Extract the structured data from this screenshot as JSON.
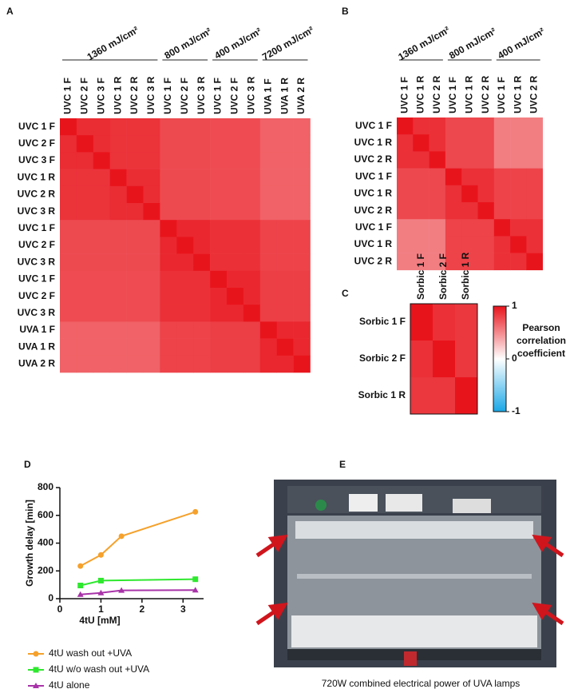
{
  "chart_data": [
    {
      "type": "heatmap",
      "label": "A",
      "rows": [
        "UVC 1 F",
        "UVC 2 F",
        "UVC 3 F",
        "UVC 1 R",
        "UVC 2 R",
        "UVC 3 R",
        "UVC 1 F",
        "UVC 2 F",
        "UVC 3 R",
        "UVC 1 F",
        "UVC 2 F",
        "UVC 3 R",
        "UVA 1 F",
        "UVA 1 R",
        "UVA 2 R"
      ],
      "column_groups": [
        {
          "label": "1360 mJ/cm²",
          "columns": [
            "UVC 1 F",
            "UVC 2 F",
            "UVC 3 F",
            "UVC 1 R",
            "UVC 2 R",
            "UVC 3 R"
          ]
        },
        {
          "label": "800 mJ/cm²",
          "columns": [
            "UVC 1 F",
            "UVC 2 F",
            "UVC 3 R"
          ]
        },
        {
          "label": "400 mJ/cm²",
          "columns": [
            "UVC 1 F",
            "UVC 2 F",
            "UVC 3 R"
          ]
        },
        {
          "label": "7200 mJ/cm²",
          "columns": [
            "UVA 1 F",
            "UVA 1 R",
            "UVA 2 R"
          ]
        }
      ],
      "values": [
        [
          1,
          0.9,
          0.9,
          0.87,
          0.87,
          0.87,
          0.77,
          0.77,
          0.77,
          0.76,
          0.76,
          0.76,
          0.67,
          0.67,
          0.67
        ],
        [
          0.9,
          1,
          0.9,
          0.87,
          0.87,
          0.87,
          0.77,
          0.77,
          0.77,
          0.76,
          0.76,
          0.76,
          0.67,
          0.67,
          0.67
        ],
        [
          0.9,
          0.9,
          1,
          0.87,
          0.87,
          0.87,
          0.77,
          0.77,
          0.77,
          0.76,
          0.76,
          0.76,
          0.67,
          0.67,
          0.67
        ],
        [
          0.87,
          0.87,
          0.87,
          1,
          0.9,
          0.9,
          0.77,
          0.77,
          0.77,
          0.76,
          0.76,
          0.76,
          0.67,
          0.67,
          0.67
        ],
        [
          0.87,
          0.87,
          0.87,
          0.9,
          1,
          0.9,
          0.77,
          0.77,
          0.77,
          0.76,
          0.76,
          0.76,
          0.67,
          0.67,
          0.67
        ],
        [
          0.87,
          0.87,
          0.87,
          0.9,
          0.9,
          1,
          0.77,
          0.77,
          0.77,
          0.76,
          0.76,
          0.76,
          0.67,
          0.67,
          0.67
        ],
        [
          0.77,
          0.77,
          0.77,
          0.77,
          0.77,
          0.77,
          1,
          0.92,
          0.92,
          0.88,
          0.88,
          0.88,
          0.8,
          0.8,
          0.8
        ],
        [
          0.77,
          0.77,
          0.77,
          0.77,
          0.77,
          0.77,
          0.92,
          1,
          0.92,
          0.88,
          0.88,
          0.88,
          0.8,
          0.8,
          0.8
        ],
        [
          0.77,
          0.77,
          0.77,
          0.77,
          0.77,
          0.77,
          0.92,
          0.92,
          1,
          0.88,
          0.88,
          0.88,
          0.8,
          0.8,
          0.8
        ],
        [
          0.76,
          0.76,
          0.76,
          0.76,
          0.76,
          0.76,
          0.88,
          0.88,
          0.88,
          1,
          0.92,
          0.92,
          0.82,
          0.82,
          0.82
        ],
        [
          0.76,
          0.76,
          0.76,
          0.76,
          0.76,
          0.76,
          0.88,
          0.88,
          0.88,
          0.92,
          1,
          0.92,
          0.82,
          0.82,
          0.82
        ],
        [
          0.76,
          0.76,
          0.76,
          0.76,
          0.76,
          0.76,
          0.88,
          0.88,
          0.88,
          0.92,
          0.92,
          1,
          0.82,
          0.82,
          0.82
        ],
        [
          0.67,
          0.67,
          0.67,
          0.67,
          0.67,
          0.67,
          0.8,
          0.8,
          0.8,
          0.82,
          0.82,
          0.82,
          1,
          0.92,
          0.92
        ],
        [
          0.67,
          0.67,
          0.67,
          0.67,
          0.67,
          0.67,
          0.8,
          0.8,
          0.8,
          0.82,
          0.82,
          0.82,
          0.92,
          1,
          0.92
        ],
        [
          0.67,
          0.67,
          0.67,
          0.67,
          0.67,
          0.67,
          0.8,
          0.8,
          0.8,
          0.82,
          0.82,
          0.82,
          0.92,
          0.92,
          1
        ]
      ],
      "zlim": [
        -1,
        1
      ],
      "colors": [
        "#1aa7e6",
        "#ffffff",
        "#e8141c"
      ]
    },
    {
      "type": "heatmap",
      "label": "B",
      "rows": [
        "UVC 1 F",
        "UVC 1 R",
        "UVC 2 R",
        "UVC 1 F",
        "UVC 1 R",
        "UVC 2 R",
        "UVC 1 F",
        "UVC 1 R",
        "UVC 2 R"
      ],
      "column_groups": [
        {
          "label": "1360 mJ/cm²",
          "columns": [
            "UVC 1 F",
            "UVC 1 R",
            "UVC 2 R"
          ]
        },
        {
          "label": "800 mJ/cm²",
          "columns": [
            "UVC 1 F",
            "UVC 1 R",
            "UVC 2 R"
          ]
        },
        {
          "label": "400 mJ/cm²",
          "columns": [
            "UVC 1 F",
            "UVC 1 R",
            "UVC 2 R"
          ]
        }
      ],
      "values": [
        [
          1,
          0.88,
          0.88,
          0.78,
          0.78,
          0.78,
          0.55,
          0.55,
          0.55
        ],
        [
          0.88,
          1,
          0.88,
          0.78,
          0.78,
          0.78,
          0.55,
          0.55,
          0.55
        ],
        [
          0.88,
          0.88,
          1,
          0.78,
          0.78,
          0.78,
          0.55,
          0.55,
          0.55
        ],
        [
          0.78,
          0.78,
          0.78,
          1,
          0.88,
          0.88,
          0.8,
          0.8,
          0.8
        ],
        [
          0.78,
          0.78,
          0.78,
          0.88,
          1,
          0.88,
          0.8,
          0.8,
          0.8
        ],
        [
          0.78,
          0.78,
          0.78,
          0.88,
          0.88,
          1,
          0.8,
          0.8,
          0.8
        ],
        [
          0.55,
          0.55,
          0.55,
          0.8,
          0.8,
          0.8,
          1,
          0.88,
          0.88
        ],
        [
          0.55,
          0.55,
          0.55,
          0.8,
          0.8,
          0.8,
          0.88,
          1,
          0.88
        ],
        [
          0.55,
          0.55,
          0.55,
          0.8,
          0.8,
          0.8,
          0.88,
          0.88,
          1
        ]
      ],
      "zlim": [
        -1,
        1
      ],
      "colors": [
        "#1aa7e6",
        "#ffffff",
        "#e8141c"
      ]
    },
    {
      "type": "heatmap",
      "label": "C",
      "rows": [
        "Sorbic 1 F",
        "Sorbic 2 F",
        "Sorbic 1 R"
      ],
      "columns": [
        "Sorbic 1 F",
        "Sorbic 2 F",
        "Sorbic 1 R"
      ],
      "values": [
        [
          1,
          0.88,
          0.85
        ],
        [
          0.88,
          1,
          0.85
        ],
        [
          0.85,
          0.85,
          1
        ]
      ],
      "zlim": [
        -1,
        1
      ],
      "colors": [
        "#1aa7e6",
        "#ffffff",
        "#e8141c"
      ],
      "colorbar": {
        "label": "Pearson correlation coefficient",
        "ticks": [
          1,
          0,
          -1
        ]
      }
    },
    {
      "type": "line",
      "label": "D",
      "x_label": "4tU [mM]",
      "y_label": "Growth delay [min]",
      "xlim": [
        0,
        3.5
      ],
      "xticks": [
        0,
        1,
        2,
        3
      ],
      "ylim": [
        0,
        800
      ],
      "yticks": [
        0,
        200,
        400,
        600,
        800
      ],
      "series": [
        {
          "name": "4tU wash out +UVA",
          "color": "#f5a12b",
          "marker": "circle",
          "x": [
            0.5,
            1,
            1.5,
            3.3
          ],
          "values": [
            235,
            315,
            450,
            625
          ]
        },
        {
          "name": "4tU w/o wash out +UVA",
          "color": "#2ee82e",
          "marker": "square",
          "x": [
            0.5,
            1,
            3.3
          ],
          "values": [
            95,
            130,
            140
          ]
        },
        {
          "name": "4tU alone",
          "color": "#a833a8",
          "marker": "triangle",
          "x": [
            0.5,
            1,
            1.5,
            3.3
          ],
          "values": [
            30,
            42,
            60,
            62
          ]
        }
      ]
    }
  ],
  "photo": {
    "label": "E",
    "caption": "720W combined electrical power of UVA lamps"
  }
}
